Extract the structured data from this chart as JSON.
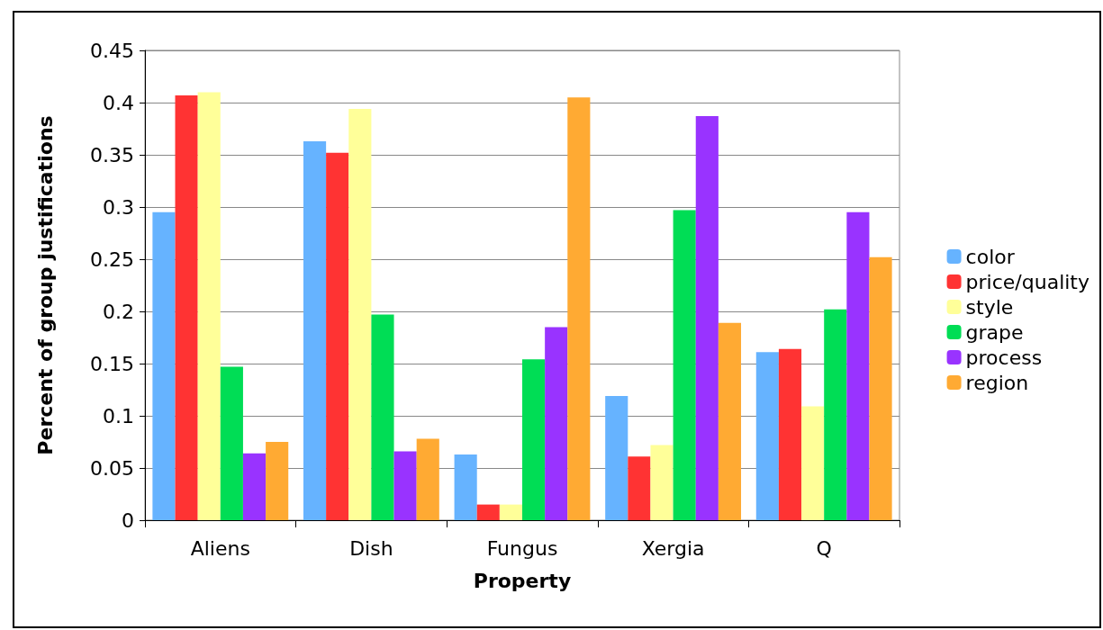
{
  "chart_data": {
    "type": "bar",
    "xlabel": "Property",
    "ylabel": "Percent of group justifications",
    "categories": [
      "Aliens",
      "Dish",
      "Fungus",
      "Xergia",
      "Q"
    ],
    "series": [
      {
        "name": "color",
        "color": "#66b3ff",
        "values": [
          0.295,
          0.363,
          0.063,
          0.119,
          0.161
        ]
      },
      {
        "name": "price/quality",
        "color": "#ff3333",
        "values": [
          0.407,
          0.352,
          0.015,
          0.061,
          0.164
        ]
      },
      {
        "name": "style",
        "color": "#ffff99",
        "values": [
          0.41,
          0.394,
          0.015,
          0.072,
          0.109
        ]
      },
      {
        "name": "grape",
        "color": "#00dd55",
        "values": [
          0.147,
          0.197,
          0.154,
          0.297,
          0.202
        ]
      },
      {
        "name": "process",
        "color": "#9933ff",
        "values": [
          0.064,
          0.066,
          0.185,
          0.387,
          0.295
        ]
      },
      {
        "name": "region",
        "color": "#ffaa33",
        "values": [
          0.075,
          0.078,
          0.405,
          0.189,
          0.252
        ]
      }
    ],
    "ylim": [
      0,
      0.45
    ],
    "yticks": [
      0,
      0.05,
      0.1,
      0.15,
      0.2,
      0.25,
      0.3,
      0.35,
      0.4,
      0.45
    ],
    "grid": "y",
    "legend": "right"
  }
}
